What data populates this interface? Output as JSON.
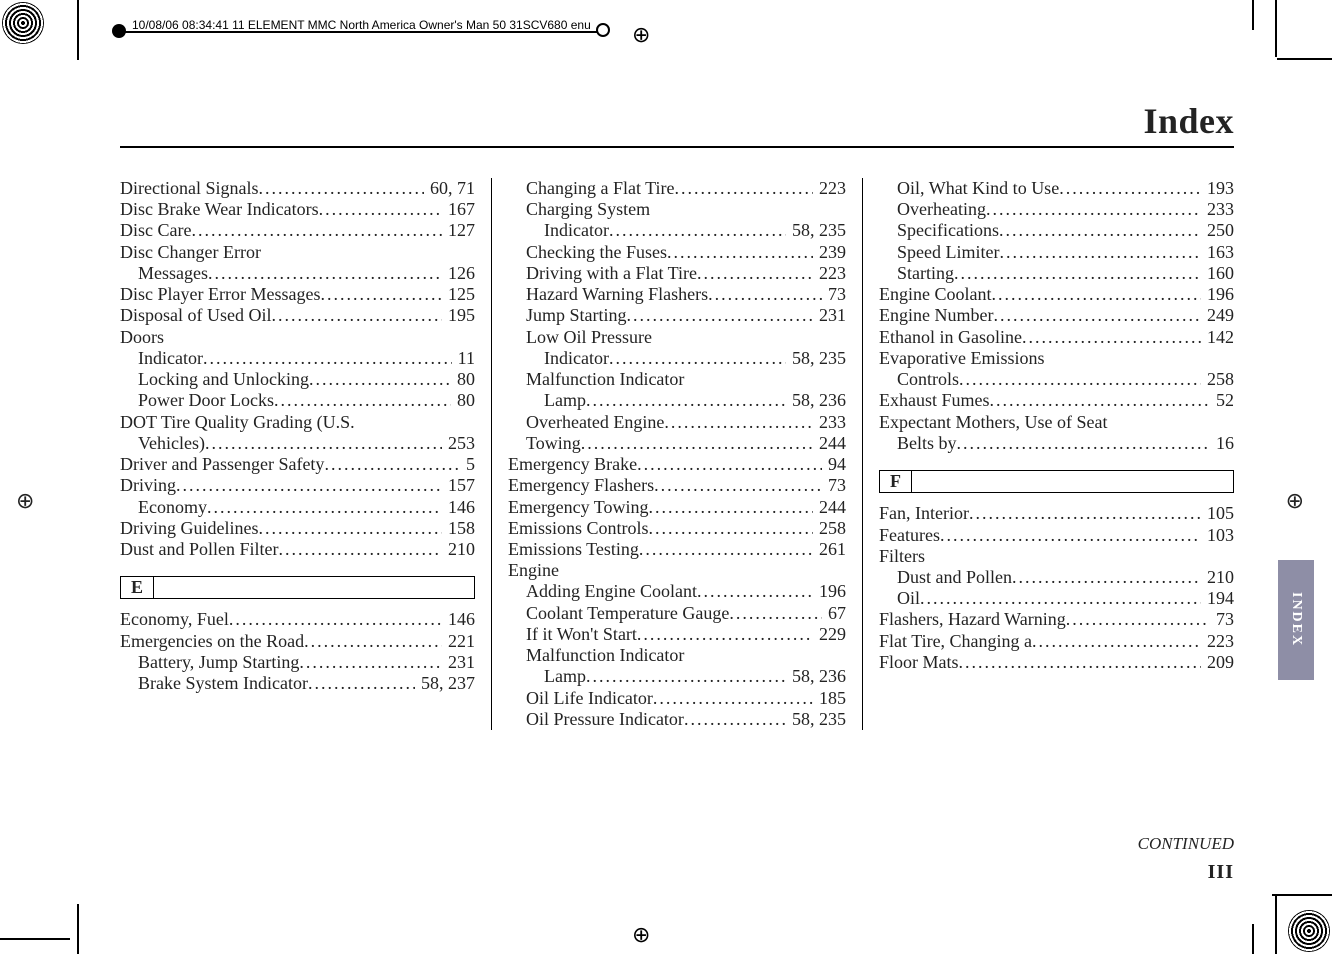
{
  "slug": "10/08/06 08:34:41   11 ELEMENT MMC North America Owner's Man 50 31SCV680 enu",
  "title": "Index",
  "side_tab": "INDEX",
  "continued": "CONTINUED",
  "page_number": "III",
  "sections": {
    "E": "E",
    "F": "F"
  },
  "col1": [
    {
      "label": "Directional Signals",
      "page": "60, 71",
      "indent": 0
    },
    {
      "label": "Disc Brake Wear Indicators",
      "page": "167",
      "indent": 0
    },
    {
      "label": "Disc Care",
      "page": "127",
      "indent": 0
    },
    {
      "label": "Disc Changer Error",
      "page": "",
      "indent": 0,
      "noPage": true
    },
    {
      "label": "Messages",
      "page": "126",
      "indent": 1
    },
    {
      "label": "Disc Player Error Messages",
      "page": "125",
      "indent": 0
    },
    {
      "label": "Disposal of Used Oil",
      "page": "195",
      "indent": 0
    },
    {
      "label": "Doors",
      "page": "",
      "indent": 0,
      "noPage": true
    },
    {
      "label": "Indicator",
      "page": "11",
      "indent": 1
    },
    {
      "label": "Locking and Unlocking",
      "page": "80",
      "indent": 1
    },
    {
      "label": "Power Door Locks",
      "page": "80",
      "indent": 1
    },
    {
      "label": "DOT Tire Quality Grading (U.S.",
      "page": "",
      "indent": 0,
      "noPage": true
    },
    {
      "label": "Vehicles)",
      "page": "253",
      "indent": 1
    },
    {
      "label": "Driver and Passenger Safety",
      "page": "5",
      "indent": 0
    },
    {
      "label": "Driving",
      "page": "157",
      "indent": 0
    },
    {
      "label": "Economy",
      "page": "146",
      "indent": 1
    },
    {
      "label": "Driving Guidelines",
      "page": "158",
      "indent": 0
    },
    {
      "label": "Dust and Pollen Filter",
      "page": "210",
      "indent": 0
    }
  ],
  "col1b": [
    {
      "label": "Economy, Fuel",
      "page": "146",
      "indent": 0
    },
    {
      "label": "Emergencies on the Road",
      "page": "221",
      "indent": 0
    },
    {
      "label": "Battery, Jump Starting",
      "page": "231",
      "indent": 1
    },
    {
      "label": "Brake System Indicator",
      "page": "58, 237",
      "indent": 1
    }
  ],
  "col2": [
    {
      "label": "Changing a Flat Tire",
      "page": "223",
      "indent": 1
    },
    {
      "label": "Charging System",
      "page": "",
      "indent": 1,
      "noPage": true
    },
    {
      "label": "Indicator",
      "page": "58, 235",
      "indent": 2
    },
    {
      "label": "Checking the Fuses",
      "page": "239",
      "indent": 1
    },
    {
      "label": "Driving with a Flat Tire",
      "page": "223",
      "indent": 1
    },
    {
      "label": "Hazard Warning Flashers",
      "page": "73",
      "indent": 1
    },
    {
      "label": "Jump Starting",
      "page": "231",
      "indent": 1
    },
    {
      "label": "Low Oil Pressure",
      "page": "",
      "indent": 1,
      "noPage": true
    },
    {
      "label": "Indicator",
      "page": "58, 235",
      "indent": 2
    },
    {
      "label": "Malfunction Indicator",
      "page": "",
      "indent": 1,
      "noPage": true
    },
    {
      "label": "Lamp",
      "page": "58, 236",
      "indent": 2
    },
    {
      "label": "Overheated Engine",
      "page": "233",
      "indent": 1
    },
    {
      "label": "Towing",
      "page": "244",
      "indent": 1
    },
    {
      "label": "Emergency Brake",
      "page": "94",
      "indent": 0
    },
    {
      "label": "Emergency Flashers",
      "page": "73",
      "indent": 0
    },
    {
      "label": "Emergency Towing",
      "page": "244",
      "indent": 0
    },
    {
      "label": "Emissions Controls",
      "page": "258",
      "indent": 0
    },
    {
      "label": "Emissions Testing",
      "page": "261",
      "indent": 0
    },
    {
      "label": "Engine",
      "page": "",
      "indent": 0,
      "noPage": true
    },
    {
      "label": "Adding Engine Coolant",
      "page": "196",
      "indent": 1
    },
    {
      "label": "Coolant Temperature Gauge",
      "page": "67",
      "indent": 1
    },
    {
      "label": "If it Won't Start",
      "page": "229",
      "indent": 1
    },
    {
      "label": "Malfunction Indicator",
      "page": "",
      "indent": 1,
      "noPage": true
    },
    {
      "label": "Lamp",
      "page": "58, 236",
      "indent": 2
    },
    {
      "label": "Oil Life Indicator",
      "page": "185",
      "indent": 1
    },
    {
      "label": "Oil Pressure Indicator",
      "page": "58, 235",
      "indent": 1
    }
  ],
  "col3a": [
    {
      "label": "Oil, What Kind to Use",
      "page": "193",
      "indent": 1
    },
    {
      "label": "Overheating",
      "page": "233",
      "indent": 1
    },
    {
      "label": "Specifications",
      "page": "250",
      "indent": 1
    },
    {
      "label": "Speed Limiter",
      "page": "163",
      "indent": 1
    },
    {
      "label": "Starting",
      "page": "160",
      "indent": 1
    },
    {
      "label": "Engine Coolant",
      "page": "196",
      "indent": 0
    },
    {
      "label": "Engine Number",
      "page": "249",
      "indent": 0
    },
    {
      "label": "Ethanol in Gasoline",
      "page": "142",
      "indent": 0
    },
    {
      "label": "Evaporative Emissions",
      "page": "",
      "indent": 0,
      "noPage": true
    },
    {
      "label": "Controls",
      "page": "258",
      "indent": 1
    },
    {
      "label": "Exhaust Fumes",
      "page": "52",
      "indent": 0
    },
    {
      "label": "Expectant Mothers, Use of Seat",
      "page": "",
      "indent": 0,
      "noPage": true
    },
    {
      "label": "Belts by",
      "page": "16",
      "indent": 1
    }
  ],
  "col3b": [
    {
      "label": "Fan, Interior",
      "page": "105",
      "indent": 0
    },
    {
      "label": "Features",
      "page": "103",
      "indent": 0
    },
    {
      "label": "Filters",
      "page": "",
      "indent": 0,
      "noPage": true
    },
    {
      "label": "Dust and Pollen",
      "page": "210",
      "indent": 1
    },
    {
      "label": "Oil",
      "page": "194",
      "indent": 1
    },
    {
      "label": "Flashers, Hazard Warning",
      "page": "73",
      "indent": 0
    },
    {
      "label": "Flat Tire, Changing a",
      "page": "223",
      "indent": 0
    },
    {
      "label": "Floor Mats",
      "page": "209",
      "indent": 0
    }
  ]
}
